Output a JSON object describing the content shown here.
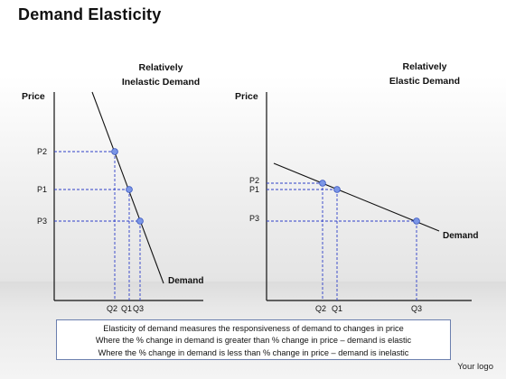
{
  "title": "Demand Elasticity",
  "left_panel": {
    "heading_line1": "Relatively",
    "heading_line2": "Inelastic Demand",
    "y_axis_label": "Price",
    "curve_label": "Demand",
    "price_labels": [
      "P2",
      "P1",
      "P3"
    ],
    "quantity_labels": [
      "Q2",
      "Q1",
      "Q3"
    ]
  },
  "right_panel": {
    "heading_line1": "Relatively",
    "heading_line2": "Elastic Demand",
    "y_axis_label": "Price",
    "curve_label": "Demand",
    "price_labels": [
      "P2",
      "P1",
      "P3"
    ],
    "quantity_labels": [
      "Q2",
      "Q1",
      "Q3"
    ]
  },
  "caption": [
    "Elasticity of demand measures the responsiveness of demand to changes in price",
    "Where the % change in demand is greater than % change in price – demand is elastic",
    "Where the % change in demand is less than % change in price – demand is inelastic"
  ],
  "logo_text": "Your logo",
  "colors": {
    "guide_line": "#2e3fc8",
    "point_fill": "#7b96e6",
    "point_stroke": "#3553c0",
    "axis": "#111111",
    "caption_border": "#6b7fae"
  }
}
